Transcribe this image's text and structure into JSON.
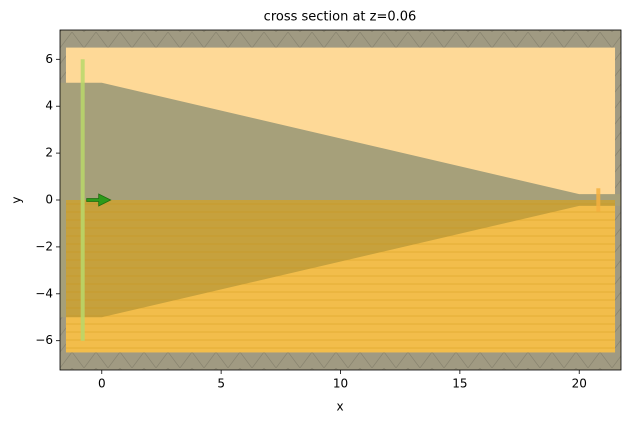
{
  "chart_data": {
    "type": "cross_section",
    "title": "cross section at z=0.06",
    "x_label": "x",
    "y_label": "y",
    "xlim": [
      -1.75,
      21.75
    ],
    "ylim": [
      -7.25,
      7.25
    ],
    "xticks": [
      0,
      5,
      10,
      15,
      20
    ],
    "yticks": [
      {
        "value": -6,
        "label": "−6"
      },
      {
        "value": -4,
        "label": "−4"
      },
      {
        "value": -2,
        "label": "−2"
      },
      0,
      2,
      4,
      6
    ],
    "sim_box": {
      "x": [
        -1.5,
        21.5
      ],
      "y": [
        -6.5,
        6.5
      ],
      "color": "#fed997"
    },
    "pml_color": "#a09a82",
    "taper": {
      "x": [
        -1.75,
        0,
        20,
        21.75,
        21.75,
        20,
        0,
        -1.75
      ],
      "y": [
        5,
        5,
        0.25,
        0.25,
        -0.25,
        -0.25,
        -5,
        -5
      ],
      "color": "#a6a07a"
    },
    "symmetry_y": 0,
    "symmetry_color": "#e6a100",
    "source": {
      "x": -0.8,
      "y": [
        -6,
        6
      ],
      "color": "#b8d86a"
    },
    "monitor": {
      "x": 20.8,
      "y": [
        -0.5,
        0.5
      ],
      "color": "#f5b040"
    }
  }
}
